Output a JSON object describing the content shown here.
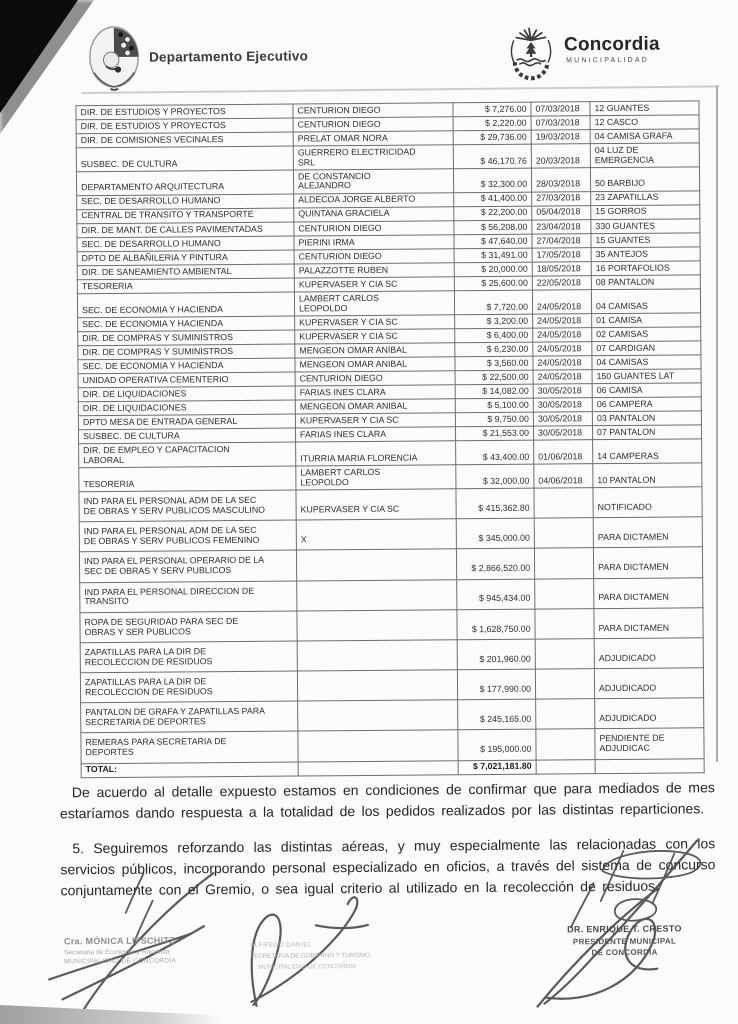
{
  "document": {
    "header": {
      "department_label": "Departamento Ejecutivo",
      "brand_name": "Concordia",
      "brand_subtitle": "MUNICIPALIDAD"
    },
    "table": {
      "rows": [
        {
          "dept": "DIR. DE ESTUDIOS Y PROYECTOS",
          "provider": "CENTURION DIEGO",
          "amount": "$ 7,276.00",
          "date": "07/03/2018",
          "item": "12 GUANTES"
        },
        {
          "dept": "DIR. DE ESTUDIOS Y PROYECTOS",
          "provider": "CENTURION DIEGO",
          "amount": "$ 2,220.00",
          "date": "07/03/2018",
          "item": "12 CASCO"
        },
        {
          "dept": "DIR. DE COMISIONES VECINALES",
          "provider": "PRELAT OMAR NORA",
          "amount": "$ 29,736.00",
          "date": "19/03/2018",
          "item": "04 CAMISA GRAFA"
        },
        {
          "dept": "SUSBEC. DE CULTURA",
          "provider": "GUERRERO ELECTRICIDAD\nSRL",
          "amount": "$ 46,170.76",
          "date": "20/03/2018",
          "item": "04 LUZ DE EMERGENCIA"
        },
        {
          "dept": "DEPARTAMENTO ARQUITECTURA",
          "provider": "DE CONSTANCIO\nALEJANDRO",
          "amount": "$ 32,300.00",
          "date": "28/03/2018",
          "item": "50 BARBIJO"
        },
        {
          "dept": "SEC. DE DESARROLLO HUMANO",
          "provider": "ALDECOA JORGE ALBERTO",
          "amount": "$ 41,400.00",
          "date": "27/03/2018",
          "item": "23 ZAPATILLAS"
        },
        {
          "dept": "CENTRAL DE TRANSITO Y TRANSPORTE",
          "provider": "QUINTANA GRACIELA",
          "amount": "$ 22,200.00",
          "date": "05/04/2018",
          "item": "15 GORROS"
        },
        {
          "dept": "DIR. DE MANT. DE CALLES PAVIMENTADAS",
          "provider": "CENTURION DIEGO",
          "amount": "$ 56,208.00",
          "date": "23/04/2018",
          "item": "330 GUANTES"
        },
        {
          "dept": "SEC. DE DESARROLLO HUMANO",
          "provider": "PIERINI IRMA",
          "amount": "$ 47,640.00",
          "date": "27/04/2018",
          "item": "15 GUANTES"
        },
        {
          "dept": "DPTO DE ALBAÑILERIA Y PINTURA",
          "provider": "CENTURION DIEGO",
          "amount": "$ 31,491.00",
          "date": "17/05/2018",
          "item": "35 ANTEJOS"
        },
        {
          "dept": "DIR. DE SANEAMIENTO AMBIENTAL",
          "provider": "PALAZZOTTE RUBEN",
          "amount": "$ 20,000.00",
          "date": "18/05/2018",
          "item": "16 PORTAFOLIOS"
        },
        {
          "dept": "TESORERIA",
          "provider": "KUPERVASER Y CIA SC",
          "amount": "$ 25,600.00",
          "date": "22/05/2018",
          "item": "08 PANTALON"
        },
        {
          "dept": "SEC. DE ECONOMIA Y HACIENDA",
          "provider": "LAMBERT CARLOS\nLEOPOLDO",
          "amount": "$ 7,720.00",
          "date": "24/05/2018",
          "item": "04 CAMISAS"
        },
        {
          "dept": "SEC. DE ECONOMIA Y HACIENDA",
          "provider": "KUPERVASER Y CIA SC",
          "amount": "$ 3,200.00",
          "date": "24/05/2018",
          "item": "01 CAMISA"
        },
        {
          "dept": "DIR. DE COMPRAS Y SUMINISTROS",
          "provider": "KUPERVASER Y CIA SC",
          "amount": "$ 6,400.00",
          "date": "24/05/2018",
          "item": "02 CAMISAS"
        },
        {
          "dept": "DIR. DE COMPRAS Y SUMINISTROS",
          "provider": "MENGEON OMAR ANIBAL",
          "amount": "$ 6,230.00",
          "date": "24/05/2018",
          "item": "07 CARDIGAN"
        },
        {
          "dept": "SEC. DE ECONOMIA Y HACIENDA",
          "provider": "MENGEON OMAR ANIBAL",
          "amount": "$ 3,560.00",
          "date": "24/05/2018",
          "item": "04 CAMISAS"
        },
        {
          "dept": "UNIDAD OPERATIVA CEMENTERIO",
          "provider": "CENTURION DIEGO",
          "amount": "$ 22,500.00",
          "date": "24/05/2018",
          "item": "150 GUANTES LAT"
        },
        {
          "dept": "DIR. DE LIQUIDACIONES",
          "provider": "FARIAS INES CLARA",
          "amount": "$ 14,082.00",
          "date": "30/05/2018",
          "item": "06 CAMISA"
        },
        {
          "dept": "DIR. DE LIQUIDACIONES",
          "provider": "MENGEON OMAR ANIBAL",
          "amount": "$ 5,100.00",
          "date": "30/05/2018",
          "item": "06 CAMPERA"
        },
        {
          "dept": "DPTO MESA DE ENTRADA GENERAL",
          "provider": "KUPERVASER Y CIA SC",
          "amount": "$ 9,750.00",
          "date": "30/05/2018",
          "item": "03 PANTALON"
        },
        {
          "dept": "SUSBEC. DE CULTURA",
          "provider": "FARIAS INES CLARA",
          "amount": "$ 21,553.00",
          "date": "30/05/2018",
          "item": "07 PANTALON"
        },
        {
          "dept": "DIR. DE EMPLEO Y CAPACITACION\nLABORAL",
          "provider": "ITURRIA MARIA FLORENCIA",
          "amount": "$ 43,400.00",
          "date": "01/06/2018",
          "item": "14 CAMPERAS"
        },
        {
          "dept": "TESORERIA",
          "provider": "LAMBERT CARLOS\nLEOPOLDO",
          "amount": "$ 32,000.00",
          "date": "04/06/2018",
          "item": "10 PANTALON"
        },
        {
          "dept": "IND PARA EL PERSONAL ADM DE LA SEC\nDE OBRAS Y SERV PUBLICOS MASCULINO",
          "provider": "KUPERVASER Y CIA SC",
          "amount": "$ 415,362.80",
          "date": "",
          "item": "NOTIFICADO"
        },
        {
          "dept": "IND PARA EL PERSONAL ADM DE LA SEC\nDE OBRAS Y SERV PUBLICOS FEMENINO",
          "provider": "X",
          "amount": "$ 345,000.00",
          "date": "",
          "item": "PARA DICTAMEN"
        },
        {
          "dept": "IND PARA EL PERSONAL OPERARIO DE LA\nSEC DE OBRAS Y SERV PUBLICOS",
          "provider": "",
          "amount": "$ 2,866,520.00",
          "date": "",
          "item": "PARA DICTAMEN"
        },
        {
          "dept": "IND PARA EL PERSONAL DIRECCION DE\nTRANSITO",
          "provider": "",
          "amount": "$ 945,434.00",
          "date": "",
          "item": "PARA DICTAMEN"
        },
        {
          "dept": "ROPA DE SEGURIDAD PARA SEC DE\nOBRAS Y SER PUBLICOS",
          "provider": "",
          "amount": "$ 1,628,750.00",
          "date": "",
          "item": "PARA DICTAMEN"
        },
        {
          "dept": "ZAPATILLAS PARA LA DIR DE\nRECOLECCION DE RESIDUOS",
          "provider": "",
          "amount": "$ 201,960.00",
          "date": "",
          "item": "ADJUDICADO"
        },
        {
          "dept": "ZAPATILLAS PARA LA DIR DE\nRECOLECCION DE RESIDUOS",
          "provider": "",
          "amount": "$ 177,990.00",
          "date": "",
          "item": "ADJUDICADO"
        },
        {
          "dept": "PANTALON DE GRAFA Y ZAPATILLAS PARA\nSECRETARIA DE DEPORTES",
          "provider": "",
          "amount": "$ 245,165.00",
          "date": "",
          "item": "ADJUDICADO"
        },
        {
          "dept": "REMERAS PARA SECRETARIA DE\nDEPORTES",
          "provider": "",
          "amount": "$ 195,000.00",
          "date": "",
          "item": "PENDIENTE DE\nADJUDICAC"
        }
      ],
      "total": {
        "label": "TOTAL:",
        "amount": "$ 7,021,181.80"
      }
    },
    "paragraphs": {
      "p1": "De acuerdo al detalle expuesto estamos en condiciones de confirmar que para mediados de mes estaríamos dando respuesta a la totalidad de los pedidos realizados por las distintas reparticiones.",
      "p2": "5. Seguiremos reforzando las distintas aéreas, y muy especialmente las relacionadas con los servicios públicos, incorporando personal especializado en oficios, a través del sistema de concurso conjuntamente con el Gremio, o sea igual criterio al utilizado en la recolección de residuos."
    },
    "signatures": {
      "left": {
        "name": "Cra. MÓNICA LIFSCHITZ",
        "role": "Secretaria de Economía y Hacienda",
        "org": "MUNICIPALIDAD DE CONCORDIA"
      },
      "center": {
        "name": "ALFREDO DANIEL",
        "role": "SECRETARIA DE GOBIERNO Y TURISMO",
        "org": "MUNICIPALIDAD DE CONCORDIA"
      },
      "right": {
        "name": "DR. ENRIQUE T. CRESTO",
        "role": "PRESIDENTE MUNICIPAL",
        "org": "DE CONCORDIA"
      }
    },
    "icons": {
      "left_logo": "municipal-crest",
      "right_logo": "concordia-sun-crest",
      "pen_marks": "signature-strokes"
    },
    "colors": {
      "ink": "#2f2f2f",
      "paper": "#fbfbf9",
      "scan_edge": "#0c0c0c"
    }
  }
}
